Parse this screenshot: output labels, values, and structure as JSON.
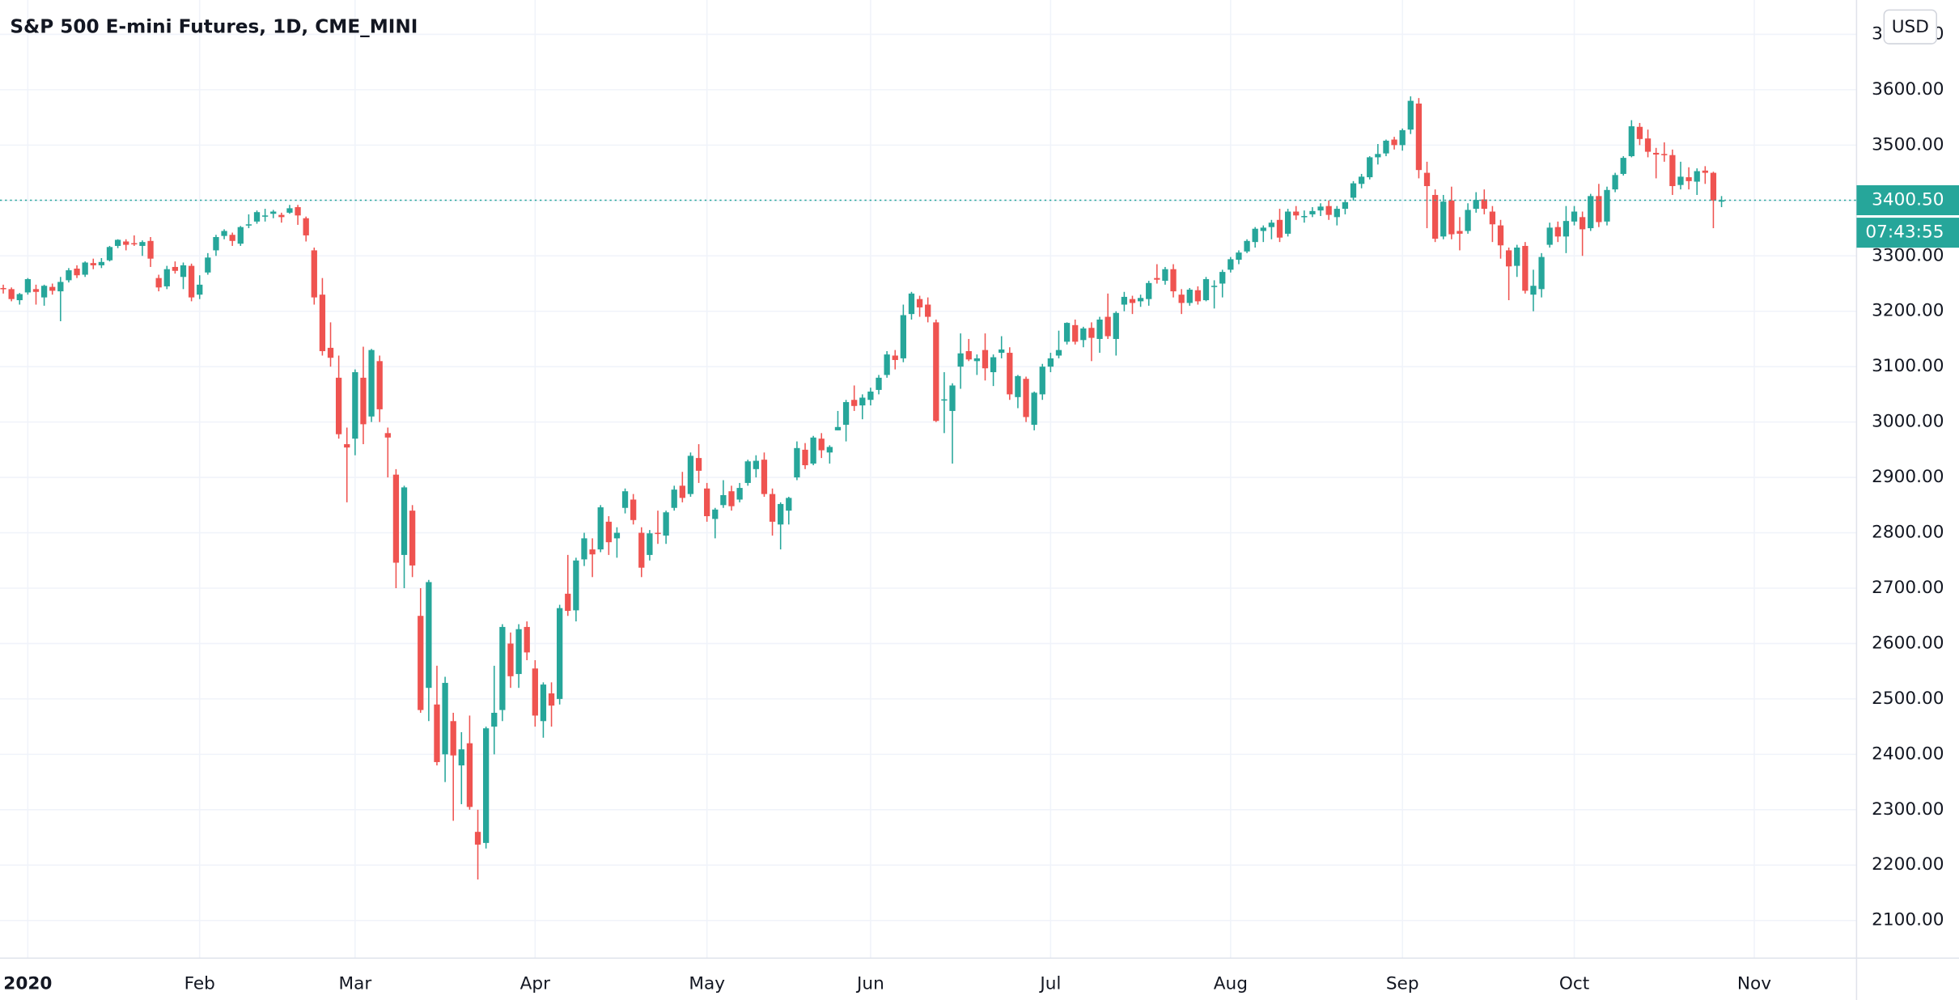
{
  "chart_data": {
    "type": "candlestick",
    "title": "S&P 500 E-mini Futures, 1D, CME_MINI",
    "currency": "USD",
    "up_color": "#26a69a",
    "down_color": "#ef5350",
    "grid": true,
    "last_price": {
      "value": 3400.5,
      "label": "3400.50"
    },
    "countdown": "07:43:55",
    "xlim": [
      -0.4,
      226.5
    ],
    "xticks": [
      {
        "value": 3,
        "label": "2020"
      },
      {
        "value": 24,
        "label": "Feb"
      },
      {
        "value": 43,
        "label": "Mar"
      },
      {
        "value": 65,
        "label": "Apr"
      },
      {
        "value": 86,
        "label": "May"
      },
      {
        "value": 106,
        "label": "Jun"
      },
      {
        "value": 128,
        "label": "Jul"
      },
      {
        "value": 150,
        "label": "Aug"
      },
      {
        "value": 171,
        "label": "Sep"
      },
      {
        "value": 192,
        "label": "Oct"
      },
      {
        "value": 214,
        "label": "Nov"
      }
    ],
    "ylim": [
      2032,
      3762
    ],
    "yticks": [
      {
        "value": 2100,
        "label": "2100.00"
      },
      {
        "value": 2200,
        "label": "2200.00"
      },
      {
        "value": 2300,
        "label": "2300.00"
      },
      {
        "value": 2400,
        "label": "2400.00"
      },
      {
        "value": 2500,
        "label": "2500.00"
      },
      {
        "value": 2600,
        "label": "2600.00"
      },
      {
        "value": 2700,
        "label": "2700.00"
      },
      {
        "value": 2800,
        "label": "2800.00"
      },
      {
        "value": 2900,
        "label": "2900.00"
      },
      {
        "value": 3000,
        "label": "3000.00"
      },
      {
        "value": 3100,
        "label": "3100.00"
      },
      {
        "value": 3200,
        "label": "3200.00"
      },
      {
        "value": 3300,
        "label": "3300.00"
      },
      {
        "value": 3400,
        "label": "3400.00"
      },
      {
        "value": 3500,
        "label": "3500.00"
      },
      {
        "value": 3600,
        "label": "3600.00"
      },
      {
        "value": 3700,
        "label": "3700.00"
      }
    ],
    "ohlc": [
      [
        3242,
        3248,
        3232,
        3240
      ],
      [
        3240,
        3243,
        3218,
        3222
      ],
      [
        3220,
        3233,
        3212,
        3231
      ],
      [
        3234,
        3260,
        3230,
        3258
      ],
      [
        3240,
        3248,
        3212,
        3235
      ],
      [
        3225,
        3248,
        3210,
        3246
      ],
      [
        3244,
        3250,
        3230,
        3237
      ],
      [
        3236,
        3262,
        3182,
        3253
      ],
      [
        3256,
        3278,
        3252,
        3274
      ],
      [
        3277,
        3283,
        3260,
        3265
      ],
      [
        3266,
        3290,
        3262,
        3288
      ],
      [
        3287,
        3295,
        3276,
        3283
      ],
      [
        3283,
        3296,
        3278,
        3289
      ],
      [
        3292,
        3318,
        3290,
        3316
      ],
      [
        3318,
        3330,
        3314,
        3329
      ],
      [
        3326,
        3330,
        3310,
        3320
      ],
      [
        3323,
        3337,
        3318,
        3321
      ],
      [
        3318,
        3328,
        3300,
        3325
      ],
      [
        3327,
        3334,
        3280,
        3295
      ],
      [
        3260,
        3266,
        3236,
        3243
      ],
      [
        3245,
        3282,
        3240,
        3276
      ],
      [
        3280,
        3290,
        3268,
        3273
      ],
      [
        3262,
        3288,
        3240,
        3283
      ],
      [
        3282,
        3286,
        3218,
        3225
      ],
      [
        3230,
        3265,
        3222,
        3248
      ],
      [
        3270,
        3305,
        3266,
        3297
      ],
      [
        3310,
        3338,
        3300,
        3334
      ],
      [
        3336,
        3348,
        3330,
        3345
      ],
      [
        3338,
        3342,
        3318,
        3327
      ],
      [
        3322,
        3354,
        3318,
        3352
      ],
      [
        3356,
        3375,
        3350,
        3357
      ],
      [
        3362,
        3382,
        3358,
        3379
      ],
      [
        3372,
        3385,
        3362,
        3373
      ],
      [
        3376,
        3383,
        3368,
        3380
      ],
      [
        3374,
        3378,
        3360,
        3370
      ],
      [
        3378,
        3392,
        3376,
        3386
      ],
      [
        3388,
        3392,
        3356,
        3373
      ],
      [
        3368,
        3371,
        3326,
        3337
      ],
      [
        3310,
        3315,
        3212,
        3225
      ],
      [
        3230,
        3260,
        3120,
        3128
      ],
      [
        3134,
        3180,
        3100,
        3116
      ],
      [
        3080,
        3120,
        2970,
        2978
      ],
      [
        2960,
        2990,
        2855,
        2954
      ],
      [
        2970,
        3095,
        2940,
        3090
      ],
      [
        3080,
        3136,
        2960,
        2996
      ],
      [
        3010,
        3132,
        3000,
        3130
      ],
      [
        3110,
        3120,
        3000,
        3023
      ],
      [
        2980,
        2990,
        2900,
        2972
      ],
      [
        2905,
        2915,
        2700,
        2746
      ],
      [
        2760,
        2885,
        2700,
        2882
      ],
      [
        2840,
        2850,
        2720,
        2741
      ],
      [
        2650,
        2700,
        2475,
        2480
      ],
      [
        2520,
        2715,
        2460,
        2711
      ],
      [
        2490,
        2560,
        2380,
        2386
      ],
      [
        2400,
        2540,
        2350,
        2529
      ],
      [
        2460,
        2475,
        2280,
        2398
      ],
      [
        2380,
        2440,
        2310,
        2409
      ],
      [
        2420,
        2470,
        2300,
        2305
      ],
      [
        2260,
        2300,
        2174,
        2237
      ],
      [
        2240,
        2450,
        2230,
        2447
      ],
      [
        2450,
        2560,
        2400,
        2475
      ],
      [
        2480,
        2635,
        2460,
        2630
      ],
      [
        2600,
        2620,
        2520,
        2541
      ],
      [
        2545,
        2635,
        2520,
        2626
      ],
      [
        2630,
        2640,
        2570,
        2584
      ],
      [
        2555,
        2570,
        2450,
        2470
      ],
      [
        2460,
        2530,
        2430,
        2526
      ],
      [
        2510,
        2530,
        2450,
        2488
      ],
      [
        2500,
        2670,
        2490,
        2664
      ],
      [
        2690,
        2760,
        2650,
        2659
      ],
      [
        2660,
        2755,
        2640,
        2750
      ],
      [
        2752,
        2800,
        2740,
        2790
      ],
      [
        2770,
        2790,
        2720,
        2761
      ],
      [
        2770,
        2850,
        2765,
        2846
      ],
      [
        2820,
        2830,
        2760,
        2783
      ],
      [
        2790,
        2810,
        2755,
        2800
      ],
      [
        2845,
        2880,
        2835,
        2875
      ],
      [
        2860,
        2870,
        2815,
        2823
      ],
      [
        2800,
        2810,
        2720,
        2737
      ],
      [
        2760,
        2805,
        2750,
        2799
      ],
      [
        2800,
        2840,
        2780,
        2798
      ],
      [
        2795,
        2840,
        2780,
        2837
      ],
      [
        2845,
        2885,
        2840,
        2878
      ],
      [
        2885,
        2910,
        2855,
        2863
      ],
      [
        2870,
        2945,
        2865,
        2939
      ],
      [
        2935,
        2960,
        2890,
        2912
      ],
      [
        2880,
        2890,
        2820,
        2830
      ],
      [
        2825,
        2845,
        2790,
        2842
      ],
      [
        2850,
        2895,
        2845,
        2868
      ],
      [
        2875,
        2885,
        2840,
        2848
      ],
      [
        2860,
        2890,
        2855,
        2881
      ],
      [
        2890,
        2932,
        2885,
        2929
      ],
      [
        2915,
        2940,
        2900,
        2930
      ],
      [
        2932,
        2945,
        2865,
        2870
      ],
      [
        2870,
        2880,
        2795,
        2820
      ],
      [
        2815,
        2855,
        2770,
        2852
      ],
      [
        2840,
        2865,
        2815,
        2863
      ],
      [
        2900,
        2965,
        2895,
        2953
      ],
      [
        2950,
        2962,
        2915,
        2922
      ],
      [
        2925,
        2975,
        2922,
        2972
      ],
      [
        2970,
        2980,
        2935,
        2949
      ],
      [
        2945,
        2958,
        2925,
        2955
      ],
      [
        2985,
        3020,
        2985,
        2991
      ],
      [
        2995,
        3040,
        2965,
        3036
      ],
      [
        3040,
        3066,
        3020,
        3029
      ],
      [
        3030,
        3050,
        3005,
        3044
      ],
      [
        3040,
        3062,
        3030,
        3055
      ],
      [
        3058,
        3085,
        3050,
        3080
      ],
      [
        3085,
        3128,
        3080,
        3122
      ],
      [
        3120,
        3130,
        3095,
        3112
      ],
      [
        3115,
        3212,
        3108,
        3193
      ],
      [
        3195,
        3235,
        3185,
        3232
      ],
      [
        3222,
        3228,
        3190,
        3207
      ],
      [
        3212,
        3225,
        3180,
        3190
      ],
      [
        3180,
        3185,
        3000,
        3002
      ],
      [
        3040,
        3090,
        2980,
        3041
      ],
      [
        3020,
        3070,
        2925,
        3066
      ],
      [
        3100,
        3160,
        3060,
        3124
      ],
      [
        3128,
        3150,
        3110,
        3113
      ],
      [
        3110,
        3122,
        3085,
        3115
      ],
      [
        3130,
        3160,
        3075,
        3097
      ],
      [
        3090,
        3122,
        3065,
        3117
      ],
      [
        3125,
        3155,
        3115,
        3131
      ],
      [
        3125,
        3135,
        3040,
        3050
      ],
      [
        3045,
        3085,
        3025,
        3083
      ],
      [
        3078,
        3082,
        3000,
        3009
      ],
      [
        2995,
        3055,
        2985,
        3053
      ],
      [
        3050,
        3105,
        3040,
        3100
      ],
      [
        3100,
        3125,
        3090,
        3115
      ],
      [
        3120,
        3165,
        3115,
        3130
      ],
      [
        3145,
        3180,
        3140,
        3179
      ],
      [
        3175,
        3185,
        3140,
        3145
      ],
      [
        3148,
        3172,
        3135,
        3169
      ],
      [
        3170,
        3180,
        3110,
        3152
      ],
      [
        3150,
        3190,
        3125,
        3185
      ],
      [
        3190,
        3232,
        3150,
        3155
      ],
      [
        3150,
        3200,
        3120,
        3197
      ],
      [
        3212,
        3235,
        3200,
        3226
      ],
      [
        3222,
        3228,
        3195,
        3215
      ],
      [
        3218,
        3230,
        3208,
        3224
      ],
      [
        3222,
        3255,
        3210,
        3251
      ],
      [
        3260,
        3285,
        3250,
        3257
      ],
      [
        3255,
        3280,
        3248,
        3276
      ],
      [
        3276,
        3285,
        3225,
        3236
      ],
      [
        3230,
        3240,
        3195,
        3215
      ],
      [
        3215,
        3242,
        3210,
        3239
      ],
      [
        3238,
        3245,
        3212,
        3218
      ],
      [
        3220,
        3262,
        3218,
        3258
      ],
      [
        3245,
        3256,
        3205,
        3246
      ],
      [
        3250,
        3275,
        3225,
        3271
      ],
      [
        3275,
        3298,
        3270,
        3294
      ],
      [
        3293,
        3310,
        3285,
        3306
      ],
      [
        3308,
        3330,
        3305,
        3327
      ],
      [
        3325,
        3352,
        3315,
        3349
      ],
      [
        3345,
        3355,
        3325,
        3351
      ],
      [
        3352,
        3365,
        3330,
        3360
      ],
      [
        3365,
        3385,
        3325,
        3333
      ],
      [
        3340,
        3385,
        3335,
        3380
      ],
      [
        3380,
        3390,
        3365,
        3373
      ],
      [
        3372,
        3382,
        3360,
        3372
      ],
      [
        3375,
        3388,
        3370,
        3381
      ],
      [
        3382,
        3395,
        3372,
        3389
      ],
      [
        3390,
        3400,
        3365,
        3374
      ],
      [
        3370,
        3390,
        3355,
        3385
      ],
      [
        3385,
        3400,
        3375,
        3397
      ],
      [
        3405,
        3435,
        3400,
        3431
      ],
      [
        3430,
        3448,
        3422,
        3443
      ],
      [
        3442,
        3480,
        3438,
        3478
      ],
      [
        3478,
        3502,
        3465,
        3484
      ],
      [
        3485,
        3510,
        3480,
        3508
      ],
      [
        3510,
        3515,
        3492,
        3500
      ],
      [
        3500,
        3530,
        3490,
        3527
      ],
      [
        3528,
        3588,
        3520,
        3580
      ],
      [
        3575,
        3585,
        3440,
        3455
      ],
      [
        3450,
        3470,
        3350,
        3426
      ],
      [
        3410,
        3420,
        3325,
        3331
      ],
      [
        3335,
        3410,
        3330,
        3398
      ],
      [
        3400,
        3425,
        3330,
        3339
      ],
      [
        3345,
        3370,
        3310,
        3340
      ],
      [
        3345,
        3395,
        3340,
        3383
      ],
      [
        3385,
        3415,
        3378,
        3401
      ],
      [
        3402,
        3420,
        3375,
        3385
      ],
      [
        3380,
        3390,
        3325,
        3357
      ],
      [
        3355,
        3365,
        3295,
        3319
      ],
      [
        3310,
        3315,
        3220,
        3281
      ],
      [
        3282,
        3320,
        3262,
        3315
      ],
      [
        3318,
        3325,
        3232,
        3237
      ],
      [
        3230,
        3275,
        3200,
        3246
      ],
      [
        3240,
        3305,
        3225,
        3298
      ],
      [
        3320,
        3360,
        3315,
        3351
      ],
      [
        3352,
        3362,
        3325,
        3335
      ],
      [
        3335,
        3390,
        3305,
        3363
      ],
      [
        3362,
        3390,
        3355,
        3380
      ],
      [
        3370,
        3380,
        3300,
        3348
      ],
      [
        3350,
        3412,
        3345,
        3408
      ],
      [
        3408,
        3430,
        3352,
        3361
      ],
      [
        3362,
        3425,
        3355,
        3419
      ],
      [
        3420,
        3450,
        3415,
        3446
      ],
      [
        3448,
        3480,
        3445,
        3477
      ],
      [
        3480,
        3545,
        3478,
        3534
      ],
      [
        3533,
        3540,
        3500,
        3511
      ],
      [
        3512,
        3528,
        3478,
        3488
      ],
      [
        3486,
        3495,
        3440,
        3483
      ],
      [
        3484,
        3505,
        3470,
        3483
      ],
      [
        3482,
        3492,
        3410,
        3426
      ],
      [
        3428,
        3470,
        3420,
        3443
      ],
      [
        3442,
        3460,
        3420,
        3435
      ],
      [
        3434,
        3458,
        3410,
        3453
      ],
      [
        3454,
        3462,
        3430,
        3450
      ],
      [
        3450,
        3452,
        3350,
        3400
      ],
      [
        3398,
        3408,
        3388,
        3400.5
      ]
    ]
  }
}
